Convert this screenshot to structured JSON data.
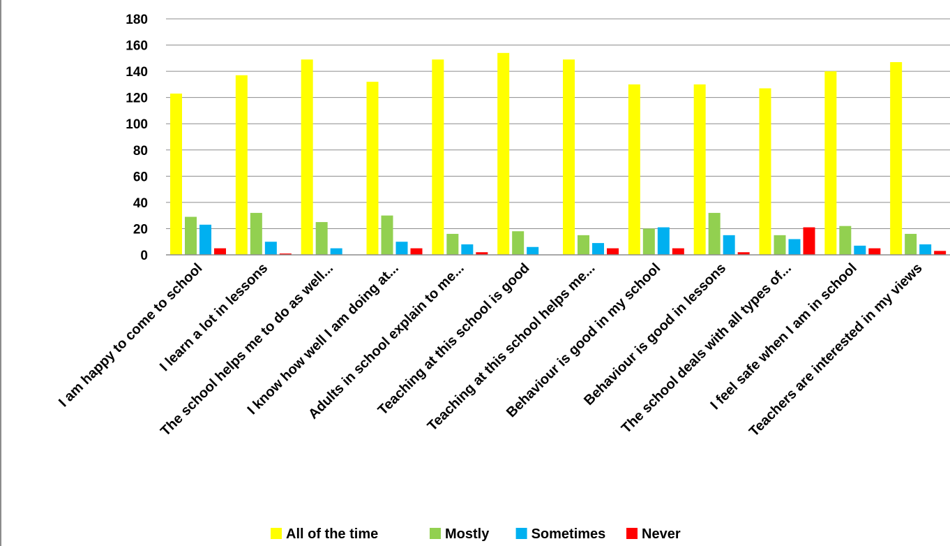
{
  "chart_data": {
    "type": "bar",
    "title": "",
    "xlabel": "",
    "ylabel": "",
    "ylim": [
      0,
      180
    ],
    "yticks": [
      0,
      20,
      40,
      60,
      80,
      100,
      120,
      140,
      160,
      180
    ],
    "grid": true,
    "legend_position": "bottom",
    "categories": [
      "I am happy to come to school",
      "I learn a lot in lessons",
      "The school helps me to do as well...",
      "I know how well I am doing at...",
      "Adults in school explain to me...",
      "Teaching at this school is good",
      "Teaching at this school helps me...",
      "Behaviour is good in my school",
      "Behaviour is good in lessons",
      "The school deals with all types of...",
      "I feel safe when I am in school",
      "Teachers are interested in my views"
    ],
    "series": [
      {
        "name": "All of the time",
        "color": "#ffff00",
        "values": [
          123,
          137,
          149,
          132,
          149,
          154,
          149,
          130,
          130,
          127,
          140,
          147
        ]
      },
      {
        "name": "Mostly",
        "color": "#92d050",
        "values": [
          29,
          32,
          25,
          30,
          16,
          18,
          15,
          20,
          32,
          15,
          22,
          16
        ]
      },
      {
        "name": "Sometimes",
        "color": "#00b0f0",
        "values": [
          23,
          10,
          5,
          10,
          8,
          6,
          9,
          21,
          15,
          12,
          7,
          8
        ]
      },
      {
        "name": "Never",
        "color": "#ff0000",
        "values": [
          5,
          1,
          0,
          5,
          2,
          0,
          5,
          5,
          2,
          21,
          5,
          3
        ]
      }
    ]
  }
}
